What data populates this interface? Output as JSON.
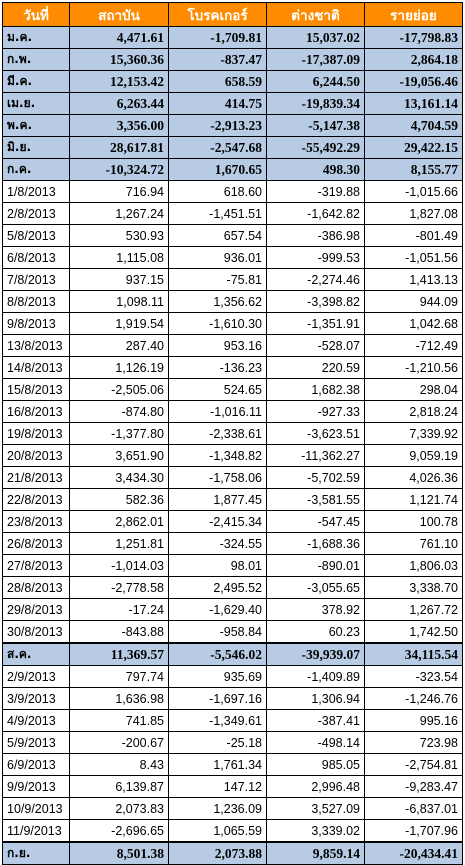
{
  "headers": [
    "วันที่",
    "สถาบัน",
    "โบรคเกอร์",
    "ต่างชาติ",
    "รายย่อย"
  ],
  "colors": {
    "header_bg": "#ff8c00",
    "monthly_bg": "#b7cce4",
    "negative": "#ff0000"
  },
  "rows": [
    {
      "type": "month",
      "label": "ม.ค.",
      "values": [
        "4,471.61",
        "-1,709.81",
        "15,037.02",
        "-17,798.83"
      ]
    },
    {
      "type": "month",
      "label": "ก.พ.",
      "values": [
        "15,360.36",
        "-837.47",
        "-17,387.09",
        "2,864.18"
      ]
    },
    {
      "type": "month",
      "label": "มี.ค.",
      "values": [
        "12,153.42",
        "658.59",
        "6,244.50",
        "-19,056.46"
      ]
    },
    {
      "type": "month",
      "label": "เม.ย.",
      "values": [
        "6,263.44",
        "414.75",
        "-19,839.34",
        "13,161.14"
      ]
    },
    {
      "type": "month",
      "label": "พ.ค.",
      "values": [
        "3,356.00",
        "-2,913.23",
        "-5,147.38",
        "4,704.59"
      ]
    },
    {
      "type": "month",
      "label": "มิ.ย.",
      "values": [
        "28,617.81",
        "-2,547.68",
        "-55,492.29",
        "29,422.15"
      ]
    },
    {
      "type": "month",
      "label": "ก.ค.",
      "values": [
        "-10,324.72",
        "1,670.65",
        "498.30",
        "8,155.77"
      ]
    },
    {
      "type": "day",
      "label": "1/8/2013",
      "values": [
        "716.94",
        "618.60",
        "-319.88",
        "-1,015.66"
      ]
    },
    {
      "type": "day",
      "label": "2/8/2013",
      "values": [
        "1,267.24",
        "-1,451.51",
        "-1,642.82",
        "1,827.08"
      ]
    },
    {
      "type": "day",
      "label": "5/8/2013",
      "values": [
        "530.93",
        "657.54",
        "-386.98",
        "-801.49"
      ]
    },
    {
      "type": "day",
      "label": "6/8/2013",
      "values": [
        "1,115.08",
        "936.01",
        "-999.53",
        "-1,051.56"
      ]
    },
    {
      "type": "day",
      "label": "7/8/2013",
      "values": [
        "937.15",
        "-75.81",
        "-2,274.46",
        "1,413.13"
      ]
    },
    {
      "type": "day",
      "label": "8/8/2013",
      "values": [
        "1,098.11",
        "1,356.62",
        "-3,398.82",
        "944.09"
      ]
    },
    {
      "type": "day",
      "label": "9/8/2013",
      "values": [
        "1,919.54",
        "-1,610.30",
        "-1,351.91",
        "1,042.68"
      ]
    },
    {
      "type": "day",
      "label": "13/8/2013",
      "values": [
        "287.40",
        "953.16",
        "-528.07",
        "-712.49"
      ]
    },
    {
      "type": "day",
      "label": "14/8/2013",
      "values": [
        "1,126.19",
        "-136.23",
        "220.59",
        "-1,210.56"
      ]
    },
    {
      "type": "day",
      "label": "15/8/2013",
      "values": [
        "-2,505.06",
        "524.65",
        "1,682.38",
        "298.04"
      ]
    },
    {
      "type": "day",
      "label": "16/8/2013",
      "values": [
        "-874.80",
        "-1,016.11",
        "-927.33",
        "2,818.24"
      ]
    },
    {
      "type": "day",
      "label": "19/8/2013",
      "values": [
        "-1,377.80",
        "-2,338.61",
        "-3,623.51",
        "7,339.92"
      ]
    },
    {
      "type": "day",
      "label": "20/8/2013",
      "values": [
        "3,651.90",
        "-1,348.82",
        "-11,362.27",
        "9,059.19"
      ]
    },
    {
      "type": "day",
      "label": "21/8/2013",
      "values": [
        "3,434.30",
        "-1,758.06",
        "-5,702.59",
        "4,026.36"
      ]
    },
    {
      "type": "day",
      "label": "22/8/2013",
      "values": [
        "582.36",
        "1,877.45",
        "-3,581.55",
        "1,121.74"
      ]
    },
    {
      "type": "day",
      "label": "23/8/2013",
      "values": [
        "2,862.01",
        "-2,415.34",
        "-547.45",
        "100.78"
      ]
    },
    {
      "type": "day",
      "label": "26/8/2013",
      "values": [
        "1,251.81",
        "-324.55",
        "-1,688.36",
        "761.10"
      ]
    },
    {
      "type": "day",
      "label": "27/8/2013",
      "values": [
        "-1,014.03",
        "98.01",
        "-890.01",
        "1,806.03"
      ]
    },
    {
      "type": "day",
      "label": "28/8/2013",
      "values": [
        "-2,778.58",
        "2,495.52",
        "-3,055.65",
        "3,338.70"
      ]
    },
    {
      "type": "day",
      "label": "29/8/2013",
      "values": [
        "-17.24",
        "-1,629.40",
        "378.92",
        "1,267.72"
      ]
    },
    {
      "type": "day",
      "label": "30/8/2013",
      "values": [
        "-843.88",
        "-958.84",
        "60.23",
        "1,742.50"
      ]
    },
    {
      "type": "month",
      "label": "ส.ค.",
      "values": [
        "11,369.57",
        "-5,546.02",
        "-39,939.07",
        "34,115.54"
      ]
    },
    {
      "type": "day",
      "label": "2/9/2013",
      "values": [
        "797.74",
        "935.69",
        "-1,409.89",
        "-323.54"
      ]
    },
    {
      "type": "day",
      "label": "3/9/2013",
      "values": [
        "1,636.98",
        "-1,697.16",
        "1,306.94",
        "-1,246.76"
      ]
    },
    {
      "type": "day",
      "label": "4/9/2013",
      "values": [
        "741.85",
        "-1,349.61",
        "-387.41",
        "995.16"
      ]
    },
    {
      "type": "day",
      "label": "5/9/2013",
      "values": [
        "-200.67",
        "-25.18",
        "-498.14",
        "723.98"
      ]
    },
    {
      "type": "day",
      "label": "6/9/2013",
      "values": [
        "8.43",
        "1,761.34",
        "985.05",
        "-2,754.81"
      ]
    },
    {
      "type": "day",
      "label": "9/9/2013",
      "values": [
        "6,139.87",
        "147.12",
        "2,996.48",
        "-9,283.47"
      ]
    },
    {
      "type": "day",
      "label": "10/9/2013",
      "values": [
        "2,073.83",
        "1,236.09",
        "3,527.09",
        "-6,837.01"
      ]
    },
    {
      "type": "day",
      "label": "11/9/2013",
      "values": [
        "-2,696.65",
        "1,065.59",
        "3,339.02",
        "-1,707.96"
      ]
    },
    {
      "type": "month",
      "label": "ก.ย.",
      "values": [
        "8,501.38",
        "2,073.88",
        "9,859.14",
        "-20,434.41"
      ]
    }
  ]
}
